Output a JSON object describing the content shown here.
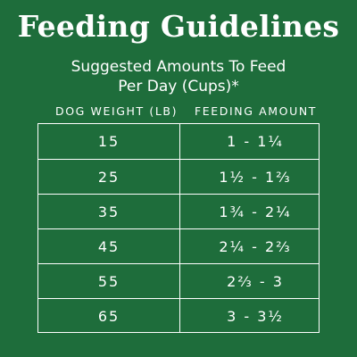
{
  "title": "Feeding Guidelines",
  "subtitle": {
    "line1": "Suggested Amounts To Feed",
    "line2": "Per Day (Cups)*"
  },
  "table": {
    "headers": {
      "weight": "DOG WEIGHT (LB)",
      "amount": "FEEDING AMOUNT"
    },
    "rows": [
      {
        "weight": "15",
        "amount": "1 - 1¼"
      },
      {
        "weight": "25",
        "amount": "1½ - 1⅔"
      },
      {
        "weight": "35",
        "amount": "1¾ - 2¼"
      },
      {
        "weight": "45",
        "amount": "2¼ - 2⅔"
      },
      {
        "weight": "55",
        "amount": "2⅔ - 3"
      },
      {
        "weight": "65",
        "amount": "3 - 3½"
      }
    ]
  },
  "colors": {
    "background": "#1e6d3b",
    "text": "#ffffff"
  }
}
